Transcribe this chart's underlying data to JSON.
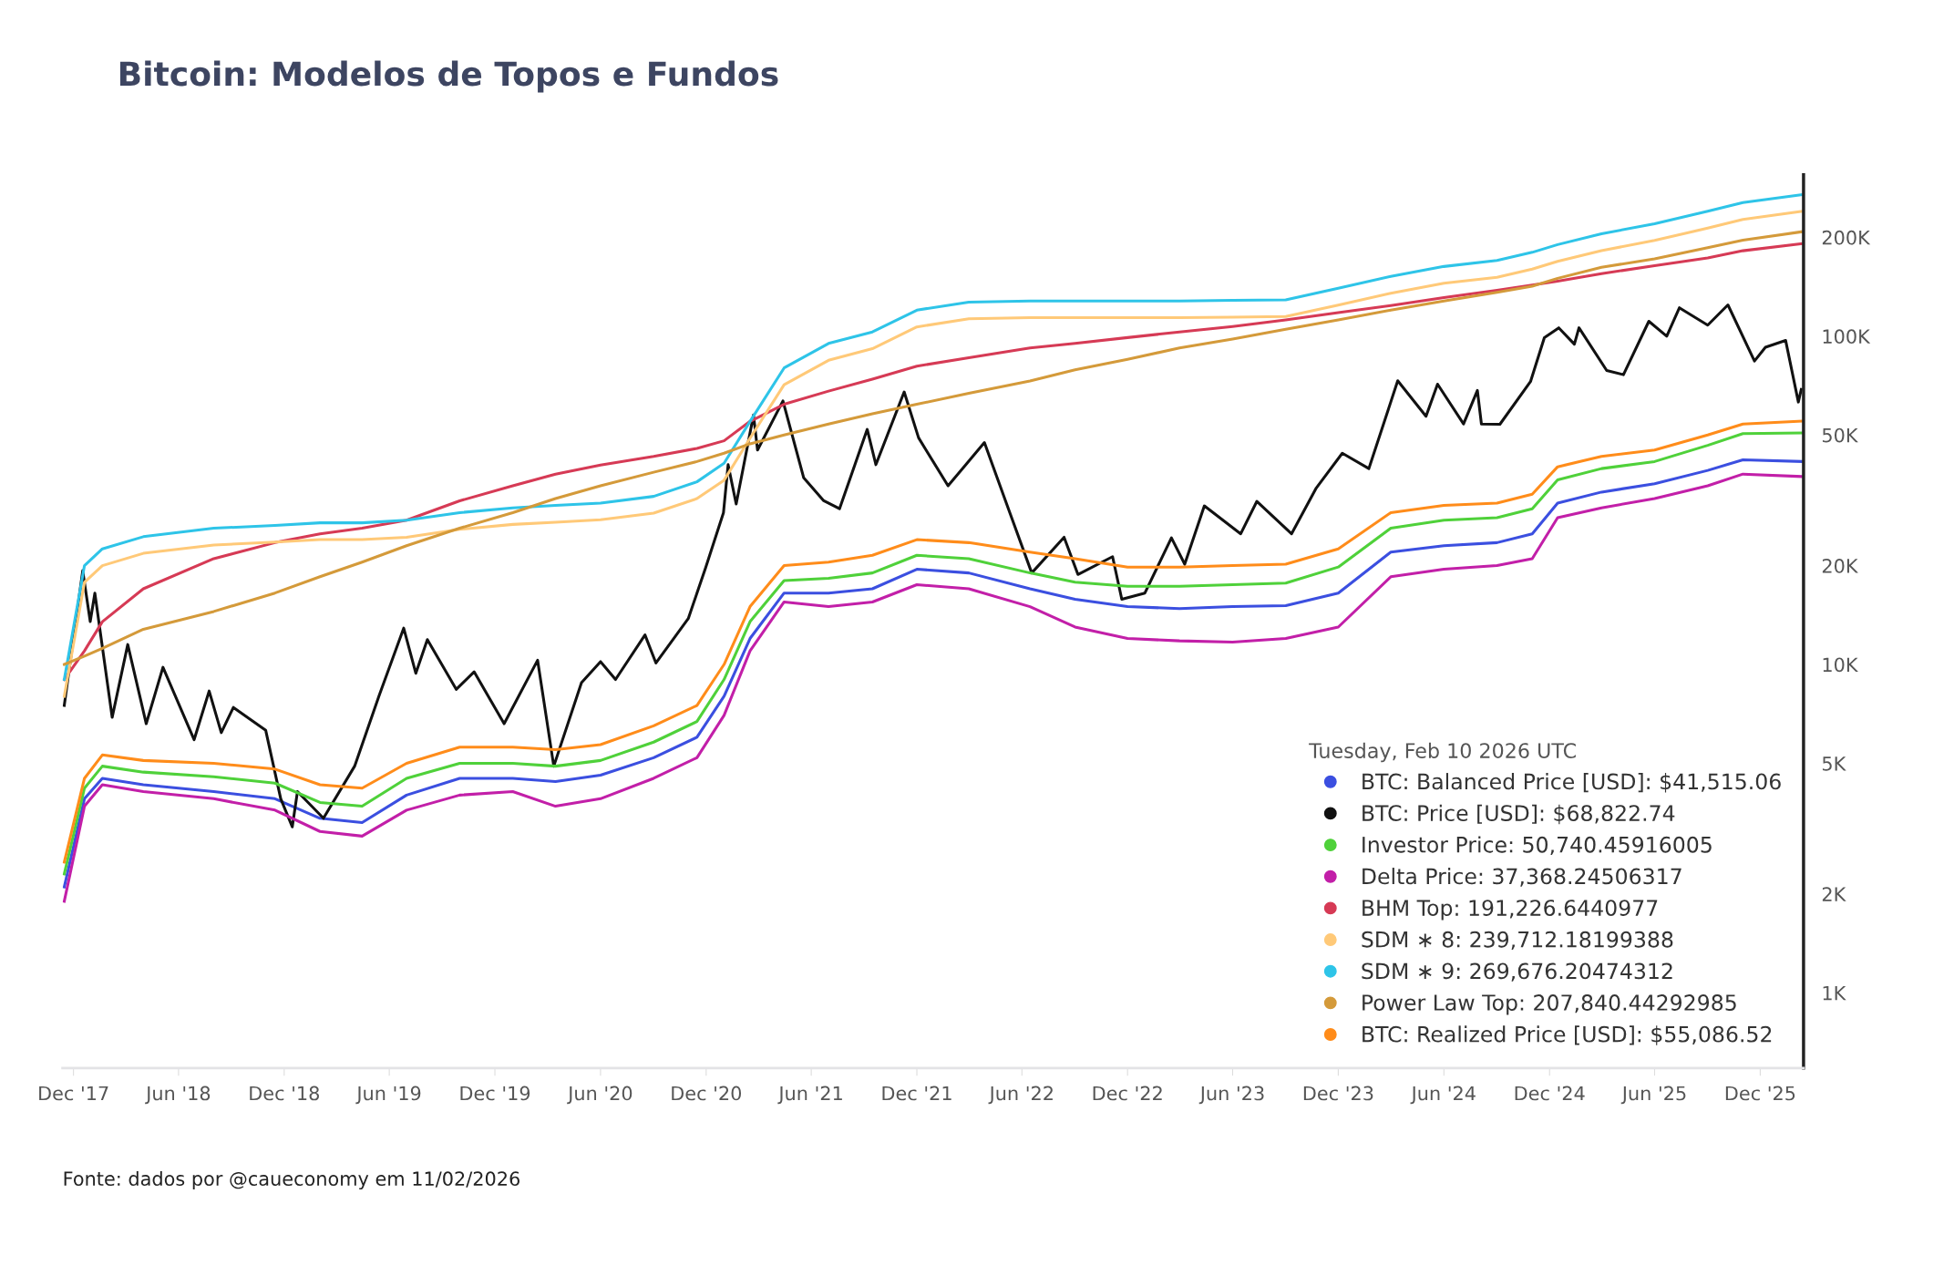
{
  "chart_data": {
    "type": "line",
    "title": "Bitcoin: Modelos de Topos e Fundos",
    "x": [
      "2017-11-15",
      "2017-12-20",
      "2018-01-20",
      "2018-04-01",
      "2018-08-01",
      "2018-11-15",
      "2019-02-01",
      "2019-04-15",
      "2019-07-01",
      "2019-10-01",
      "2020-01-01",
      "2020-03-15",
      "2020-06-01",
      "2020-09-01",
      "2020-11-15",
      "2021-01-01",
      "2021-02-15",
      "2021-04-15",
      "2021-07-01",
      "2021-09-15",
      "2021-12-01",
      "2022-03-01",
      "2022-06-15",
      "2022-09-01",
      "2022-12-01",
      "2023-03-01",
      "2023-06-01",
      "2023-09-01",
      "2023-12-01",
      "2024-03-01",
      "2024-06-01",
      "2024-09-01",
      "2024-11-01",
      "2024-12-15",
      "2025-03-01",
      "2025-06-01",
      "2025-09-01",
      "2025-11-01",
      "2026-02-10"
    ],
    "series": [
      {
        "name": "BTC: Balanced Price [USD]: $41,515.06",
        "color": "#3b4fe0",
        "values": [
          2100,
          3900,
          4500,
          4300,
          4100,
          3900,
          3400,
          3300,
          4000,
          4500,
          4500,
          4400,
          4600,
          5200,
          6000,
          8000,
          12000,
          16500,
          16500,
          17000,
          19500,
          19000,
          17000,
          15800,
          15000,
          14800,
          15000,
          15100,
          16500,
          22000,
          23000,
          23500,
          25000,
          31000,
          33500,
          35500,
          39000,
          42000,
          41515.06
        ]
      },
      {
        "name": "BTC: Price [USD]: $68,822.74",
        "color": "#111111",
        "x": [
          "2017-11-15",
          "2017-12-17",
          "2017-12-30",
          "2018-01-07",
          "2018-02-06",
          "2018-03-05",
          "2018-04-06",
          "2018-05-05",
          "2018-06-28",
          "2018-07-24",
          "2018-08-14",
          "2018-09-04",
          "2018-10-30",
          "2018-11-25",
          "2018-12-15",
          "2018-12-24",
          "2019-02-07",
          "2019-04-02",
          "2019-05-14",
          "2019-06-26",
          "2019-07-17",
          "2019-08-06",
          "2019-09-25",
          "2019-10-26",
          "2019-12-17",
          "2020-02-13",
          "2020-03-12",
          "2020-04-29",
          "2020-06-01",
          "2020-06-27",
          "2020-08-17",
          "2020-09-05",
          "2020-10-31",
          "2020-11-30",
          "2020-12-31",
          "2021-01-08",
          "2021-01-22",
          "2021-02-21",
          "2021-02-28",
          "2021-04-13",
          "2021-05-19",
          "2021-06-22",
          "2021-07-20",
          "2021-09-06",
          "2021-09-21",
          "2021-11-09",
          "2021-12-04",
          "2022-01-24",
          "2022-03-28",
          "2022-05-11",
          "2022-06-18",
          "2022-08-13",
          "2022-09-06",
          "2022-11-05",
          "2022-11-21",
          "2022-12-31",
          "2023-02-15",
          "2023-03-10",
          "2023-04-13",
          "2023-06-15",
          "2023-07-13",
          "2023-09-11",
          "2023-10-24",
          "2023-12-08",
          "2024-01-23",
          "2024-03-13",
          "2024-05-01",
          "2024-05-21",
          "2024-07-05",
          "2024-07-29",
          "2024-08-05",
          "2024-09-06",
          "2024-10-29",
          "2024-11-22",
          "2024-12-17",
          "2025-01-13",
          "2025-01-21",
          "2025-03-10",
          "2025-04-08",
          "2025-05-22",
          "2025-06-22",
          "2025-07-14",
          "2025-09-01",
          "2025-10-06",
          "2025-11-21",
          "2025-12-10",
          "2026-01-14",
          "2026-02-05",
          "2026-02-10"
        ],
        "values": [
          7500,
          19300,
          13500,
          16500,
          6900,
          11500,
          6600,
          9800,
          5900,
          8300,
          6200,
          7400,
          6300,
          3900,
          3200,
          4100,
          3400,
          4900,
          8000,
          12900,
          9400,
          11900,
          8400,
          9500,
          6600,
          10300,
          4900,
          8800,
          10200,
          9000,
          12300,
          10100,
          13800,
          19700,
          29000,
          40600,
          30800,
          57500,
          45000,
          63500,
          37000,
          31600,
          29800,
          52000,
          40600,
          67600,
          49000,
          35000,
          47400,
          29000,
          19000,
          24400,
          18800,
          21300,
          15800,
          16500,
          24300,
          20200,
          30400,
          25000,
          31400,
          25000,
          34500,
          44000,
          39500,
          73100,
          57000,
          71400,
          54000,
          68300,
          54000,
          53900,
          72700,
          98900,
          106000,
          94500,
          106000,
          78600,
          76300,
          111000,
          100000,
          122000,
          108000,
          124500,
          84000,
          92500,
          97000,
          63000,
          68822.74
        ]
      },
      {
        "name": "Investor Price: 50,740.45916005",
        "color": "#4fd13a",
        "values": [
          2300,
          4200,
          4900,
          4700,
          4550,
          4350,
          3800,
          3700,
          4500,
          5000,
          5000,
          4900,
          5100,
          5800,
          6700,
          9000,
          13500,
          18000,
          18300,
          19000,
          21500,
          21000,
          19000,
          17800,
          17300,
          17300,
          17500,
          17700,
          19800,
          26000,
          27500,
          28000,
          29800,
          36500,
          39500,
          41500,
          46500,
          50500,
          50740.46
        ]
      },
      {
        "name": "Delta Price: 37,368.24506317",
        "color": "#c21fa8",
        "values": [
          1900,
          3700,
          4300,
          4100,
          3900,
          3600,
          3100,
          3000,
          3600,
          4000,
          4100,
          3700,
          3900,
          4500,
          5200,
          7000,
          11000,
          15500,
          15000,
          15500,
          17500,
          17000,
          15000,
          13000,
          12000,
          11800,
          11700,
          12000,
          13000,
          18500,
          19500,
          20000,
          21000,
          28000,
          30000,
          32000,
          35000,
          38000,
          37368.25
        ]
      },
      {
        "name": "BHM Top: 191,226.6440977",
        "color": "#d63a55",
        "values": [
          9000,
          11000,
          13500,
          17000,
          21000,
          23500,
          25000,
          26000,
          27500,
          31500,
          35000,
          38000,
          40500,
          43000,
          45500,
          48000,
          55000,
          62000,
          68000,
          74000,
          81000,
          86000,
          92000,
          95000,
          99000,
          103000,
          107000,
          112000,
          118000,
          124000,
          131000,
          138000,
          143000,
          147000,
          155000,
          164000,
          173000,
          182000,
          191226.64
        ]
      },
      {
        "name": "SDM ∗ 8: 239,712.18199388",
        "color": "#ffc978",
        "values": [
          8000,
          17800,
          20000,
          21800,
          23100,
          23600,
          24000,
          24000,
          24400,
          25800,
          26700,
          27100,
          27600,
          28900,
          32000,
          36400,
          48900,
          71100,
          84400,
          91600,
          106700,
          112900,
          113800,
          113800,
          113800,
          113800,
          114200,
          114700,
          124400,
          135100,
          144900,
          151100,
          160000,
          168900,
          182200,
          195600,
          213300,
          226700,
          239712.18
        ]
      },
      {
        "name": "SDM ∗ 9: 269,676.20474312",
        "color": "#2ec4e8",
        "values": [
          9000,
          20000,
          22500,
          24500,
          26000,
          26500,
          27000,
          27000,
          27500,
          29000,
          30000,
          30500,
          31000,
          32500,
          36000,
          41000,
          55000,
          80000,
          95000,
          103000,
          120000,
          127000,
          128000,
          128000,
          128000,
          128000,
          128500,
          129000,
          140000,
          152000,
          163000,
          170000,
          180000,
          190000,
          205000,
          220000,
          240000,
          255000,
          269676.2
        ]
      },
      {
        "name": "Power Law Top: 207,840.44292985",
        "color": "#d49a3a",
        "values": [
          10000,
          10600,
          11200,
          12800,
          14500,
          16500,
          18500,
          20500,
          23000,
          26000,
          29000,
          32000,
          35000,
          38500,
          41500,
          44000,
          47000,
          50000,
          54000,
          58000,
          62000,
          67000,
          73000,
          79000,
          85000,
          92000,
          98000,
          105000,
          112000,
          120000,
          128000,
          136000,
          142000,
          150000,
          162000,
          172000,
          186000,
          196000,
          207840.44
        ]
      },
      {
        "name": "BTC: Realized Price [USD]: $55,086.52",
        "color": "#ff8c1a",
        "values": [
          2500,
          4500,
          5300,
          5100,
          5000,
          4800,
          4300,
          4200,
          5000,
          5600,
          5600,
          5500,
          5700,
          6500,
          7500,
          10000,
          15000,
          20000,
          20500,
          21500,
          24000,
          23500,
          22000,
          21000,
          19800,
          19800,
          20000,
          20200,
          22500,
          29000,
          30500,
          31000,
          33000,
          40000,
          43000,
          45000,
          50000,
          54000,
          55086.52
        ]
      }
    ],
    "log": "y",
    "ylim": [
      590,
      310000
    ],
    "yticks": [
      {
        "value": 1000,
        "label": "1K"
      },
      {
        "value": 2000,
        "label": "2K"
      },
      {
        "value": 5000,
        "label": "5K"
      },
      {
        "value": 10000,
        "label": "10K"
      },
      {
        "value": 20000,
        "label": "20K"
      },
      {
        "value": 50000,
        "label": "50K"
      },
      {
        "value": 100000,
        "label": "100K"
      },
      {
        "value": 200000,
        "label": "200K"
      }
    ],
    "xlim": [
      "2017-11-12",
      "2026-02-14"
    ],
    "xticks": [
      {
        "value": "2017-12-01",
        "label": "Dec '17"
      },
      {
        "value": "2018-06-01",
        "label": "Jun '18"
      },
      {
        "value": "2018-12-01",
        "label": "Dec '18"
      },
      {
        "value": "2019-06-01",
        "label": "Jun '19"
      },
      {
        "value": "2019-12-01",
        "label": "Dec '19"
      },
      {
        "value": "2020-06-01",
        "label": "Jun '20"
      },
      {
        "value": "2020-12-01",
        "label": "Dec '20"
      },
      {
        "value": "2021-06-01",
        "label": "Jun '21"
      },
      {
        "value": "2021-12-01",
        "label": "Dec '21"
      },
      {
        "value": "2022-06-01",
        "label": "Jun '22"
      },
      {
        "value": "2022-12-01",
        "label": "Dec '22"
      },
      {
        "value": "2023-06-01",
        "label": "Jun '23"
      },
      {
        "value": "2023-12-01",
        "label": "Dec '23"
      },
      {
        "value": "2024-06-01",
        "label": "Jun '24"
      },
      {
        "value": "2024-12-01",
        "label": "Dec '24"
      },
      {
        "value": "2025-06-01",
        "label": "Jun '25"
      },
      {
        "value": "2025-12-01",
        "label": "Dec '25"
      }
    ],
    "grid": false,
    "legend": "bottom right",
    "legend_title": "Tuesday, Feb 10 2026 UTC",
    "line_style": "solid",
    "marker": "none",
    "annotations": [
      "Fonte: dados por @caueconomy em 11/02/2026"
    ]
  }
}
